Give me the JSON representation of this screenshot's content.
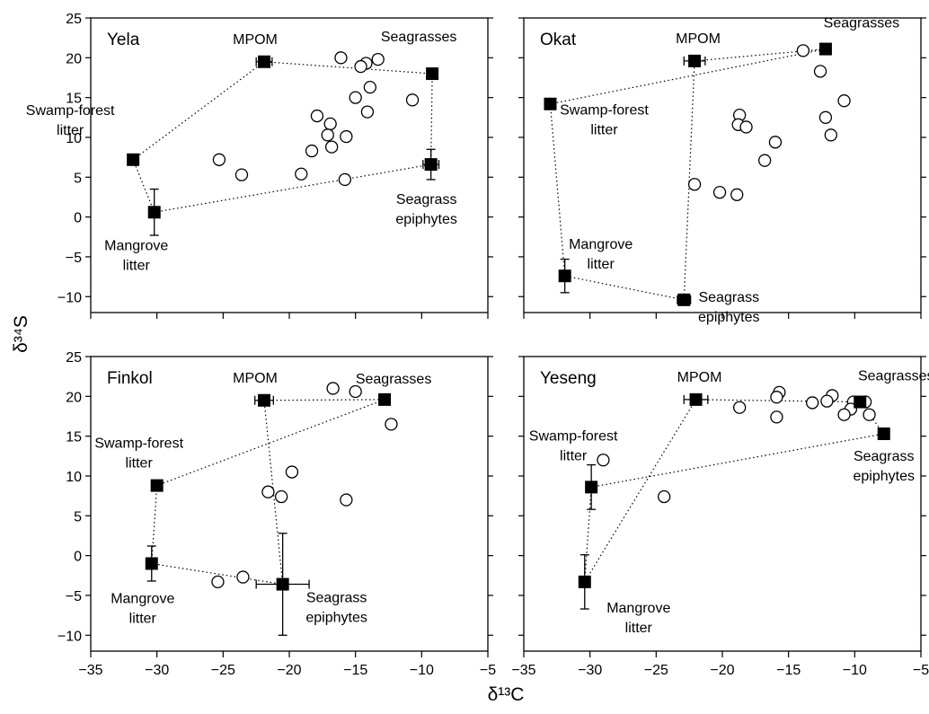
{
  "chart_data": [
    {
      "type": "scatter",
      "title": "Yela",
      "xlim": [
        -35,
        -5
      ],
      "ylim": [
        -12,
        25
      ],
      "sources": [
        {
          "name": "Swamp-forest litter",
          "label": [
            "Swamp-forest",
            "litter"
          ],
          "x": -31.8,
          "y": 7.2
        },
        {
          "name": "MPOM",
          "label": [
            "MPOM"
          ],
          "x": -21.9,
          "y": 19.5,
          "xerr": 0.6
        },
        {
          "name": "Seagrasses",
          "label": [
            "Seagrasses"
          ],
          "x": -9.2,
          "y": 18.0
        },
        {
          "name": "Seagrass epiphytes",
          "label": [
            "Seagrass",
            "epiphytes"
          ],
          "x": -9.3,
          "y": 6.6,
          "xerr": 0.6,
          "yerr": 1.9
        },
        {
          "name": "Mangrove litter",
          "label": [
            "Mangrove",
            "litter"
          ],
          "x": -30.2,
          "y": 0.6,
          "yerr": 2.9
        }
      ],
      "consumers": [
        {
          "x": -16.1,
          "y": 20.0
        },
        {
          "x": -13.3,
          "y": 19.8
        },
        {
          "x": -14.2,
          "y": 19.3
        },
        {
          "x": -14.6,
          "y": 18.9
        },
        {
          "x": -13.9,
          "y": 16.3
        },
        {
          "x": -15.0,
          "y": 15.0
        },
        {
          "x": -10.7,
          "y": 14.7
        },
        {
          "x": -14.1,
          "y": 13.2
        },
        {
          "x": -17.9,
          "y": 12.7
        },
        {
          "x": -16.9,
          "y": 11.7
        },
        {
          "x": -17.1,
          "y": 10.3
        },
        {
          "x": -15.7,
          "y": 10.1
        },
        {
          "x": -16.8,
          "y": 8.8
        },
        {
          "x": -18.3,
          "y": 8.3
        },
        {
          "x": -25.3,
          "y": 7.2
        },
        {
          "x": -19.1,
          "y": 5.4
        },
        {
          "x": -23.6,
          "y": 5.3
        },
        {
          "x": -15.8,
          "y": 4.7
        }
      ]
    },
    {
      "type": "scatter",
      "title": "Okat",
      "xlim": [
        -35,
        -5
      ],
      "ylim": [
        -12,
        25
      ],
      "sources": [
        {
          "name": "MPOM",
          "label": [
            "MPOM"
          ],
          "x": -22.1,
          "y": 19.6,
          "xerr": 0.8
        },
        {
          "name": "Seagrasses",
          "label": [
            "Seagrasses"
          ],
          "x": -12.2,
          "y": 21.1
        },
        {
          "name": "Swamp-forest litter",
          "label": [
            "Swamp-forest",
            "litter"
          ],
          "x": -33.0,
          "y": 14.2
        },
        {
          "name": "Mangrove litter",
          "label": [
            "Mangrove",
            "litter"
          ],
          "x": -31.9,
          "y": -7.4,
          "yerr": 2.1
        },
        {
          "name": "Seagrass epiphytes",
          "label": [
            "Seagrass",
            "epiphytes"
          ],
          "x": -22.9,
          "y": -10.4,
          "xerr": 0.5
        }
      ],
      "consumers": [
        {
          "x": -13.9,
          "y": 20.9
        },
        {
          "x": -12.6,
          "y": 18.3
        },
        {
          "x": -10.8,
          "y": 14.6
        },
        {
          "x": -18.7,
          "y": 12.8
        },
        {
          "x": -12.2,
          "y": 12.5
        },
        {
          "x": -18.8,
          "y": 11.6
        },
        {
          "x": -18.2,
          "y": 11.3
        },
        {
          "x": -11.8,
          "y": 10.3
        },
        {
          "x": -16.0,
          "y": 9.4
        },
        {
          "x": -16.8,
          "y": 7.1
        },
        {
          "x": -22.1,
          "y": 4.1
        },
        {
          "x": -20.2,
          "y": 3.1
        },
        {
          "x": -18.9,
          "y": 2.8
        }
      ]
    },
    {
      "type": "scatter",
      "title": "Finkol",
      "xlim": [
        -35,
        -5
      ],
      "ylim": [
        -12,
        25
      ],
      "sources": [
        {
          "name": "MPOM",
          "label": [
            "MPOM"
          ],
          "x": -21.9,
          "y": 19.5,
          "xerr": 0.7
        },
        {
          "name": "Seagrasses",
          "label": [
            "Seagrasses"
          ],
          "x": -12.8,
          "y": 19.6
        },
        {
          "name": "Swamp-forest litter",
          "label": [
            "Swamp-forest",
            "litter"
          ],
          "x": -30.0,
          "y": 8.8
        },
        {
          "name": "Mangrove litter",
          "label": [
            "Mangrove",
            "litter"
          ],
          "x": -30.4,
          "y": -1.0,
          "yerr": 2.2
        },
        {
          "name": "Seagrass epiphytes",
          "label": [
            "Seagrass",
            "epiphytes"
          ],
          "x": -20.5,
          "y": -3.6,
          "xerr": 2.0,
          "yerr": 6.4
        }
      ],
      "consumers": [
        {
          "x": -16.7,
          "y": 21.0
        },
        {
          "x": -15.0,
          "y": 20.6
        },
        {
          "x": -12.3,
          "y": 16.5
        },
        {
          "x": -19.8,
          "y": 10.5
        },
        {
          "x": -21.6,
          "y": 8.0
        },
        {
          "x": -20.6,
          "y": 7.4
        },
        {
          "x": -15.7,
          "y": 7.0
        },
        {
          "x": -23.5,
          "y": -2.7
        },
        {
          "x": -25.4,
          "y": -3.3
        }
      ]
    },
    {
      "type": "scatter",
      "title": "Yeseng",
      "xlim": [
        -35,
        -5
      ],
      "ylim": [
        -12,
        25
      ],
      "sources": [
        {
          "name": "MPOM",
          "label": [
            "MPOM"
          ],
          "x": -22.0,
          "y": 19.6,
          "xerr": 0.9
        },
        {
          "name": "Seagrasses",
          "label": [
            "Seagrasses"
          ],
          "x": -9.6,
          "y": 19.3
        },
        {
          "name": "Seagrass epiphytes",
          "label": [
            "Seagrass",
            "epiphytes"
          ],
          "x": -7.8,
          "y": 15.3
        },
        {
          "name": "Swamp-forest litter",
          "label": [
            "Swamp-forest",
            "litter"
          ],
          "x": -29.9,
          "y": 8.6,
          "yerr": 2.8
        },
        {
          "name": "Mangrove litter",
          "label": [
            "Mangrove",
            "litter"
          ],
          "x": -30.4,
          "y": -3.3,
          "yerr": 3.4
        }
      ],
      "consumers": [
        {
          "x": -15.7,
          "y": 20.5
        },
        {
          "x": -11.7,
          "y": 20.1
        },
        {
          "x": -15.9,
          "y": 19.9
        },
        {
          "x": -12.1,
          "y": 19.4
        },
        {
          "x": -13.2,
          "y": 19.2
        },
        {
          "x": -10.1,
          "y": 19.3
        },
        {
          "x": -9.2,
          "y": 19.3
        },
        {
          "x": -18.7,
          "y": 18.6
        },
        {
          "x": -10.3,
          "y": 18.4
        },
        {
          "x": -10.8,
          "y": 17.7
        },
        {
          "x": -8.9,
          "y": 17.7
        },
        {
          "x": -15.9,
          "y": 17.4
        },
        {
          "x": -29.0,
          "y": 12.0
        },
        {
          "x": -24.4,
          "y": 7.4
        }
      ]
    }
  ],
  "axes": {
    "xlabel": "δ¹³C",
    "ylabel": "δ³⁴S",
    "xticks": [
      -35,
      -30,
      -25,
      -20,
      -15,
      -10,
      -5
    ],
    "yticks": [
      25,
      20,
      15,
      10,
      5,
      0,
      -5,
      -10
    ]
  }
}
